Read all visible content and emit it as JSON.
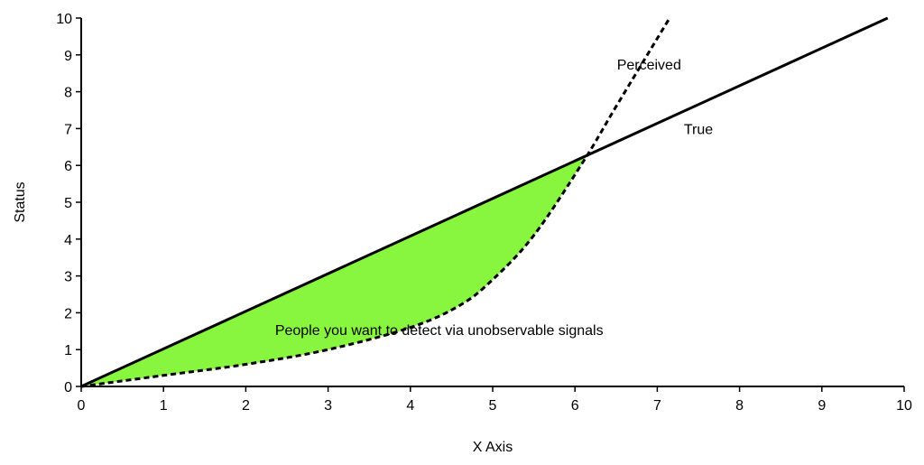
{
  "chart_data": {
    "type": "line",
    "title": "",
    "xlabel": "X Axis",
    "ylabel": "Status",
    "xlim": [
      0,
      10
    ],
    "ylim": [
      0,
      10
    ],
    "xticks": [
      "0",
      "1",
      "2",
      "3",
      "4",
      "5",
      "6",
      "7",
      "8",
      "9",
      "10"
    ],
    "yticks": [
      "0",
      "1",
      "2",
      "3",
      "4",
      "5",
      "6",
      "7",
      "8",
      "9",
      "10"
    ],
    "grid": false,
    "series": [
      {
        "name": "True",
        "style": "solid",
        "color": "#000000",
        "x": [
          0,
          9.8
        ],
        "y": [
          0,
          10
        ]
      },
      {
        "name": "Perceived",
        "style": "dashed",
        "color": "#000000",
        "x": [
          0,
          1,
          2,
          3,
          4,
          4.6,
          5,
          5.5,
          6.1,
          6.5,
          7.15
        ],
        "y": [
          0,
          0.3,
          0.6,
          1.0,
          1.6,
          2.2,
          2.9,
          4.1,
          6.1,
          7.6,
          10
        ]
      }
    ],
    "shaded_region": {
      "color": "#88f63e",
      "between": [
        "True",
        "Perceived"
      ],
      "x_range": [
        0,
        6.15
      ]
    },
    "annotations": [
      {
        "text": "Perceived",
        "x": 6.9,
        "y": 8.6
      },
      {
        "text": "True",
        "x": 7.5,
        "y": 6.85
      },
      {
        "text": "People you want to detect via unobservable signals",
        "x": 4.35,
        "y": 1.4
      }
    ]
  }
}
